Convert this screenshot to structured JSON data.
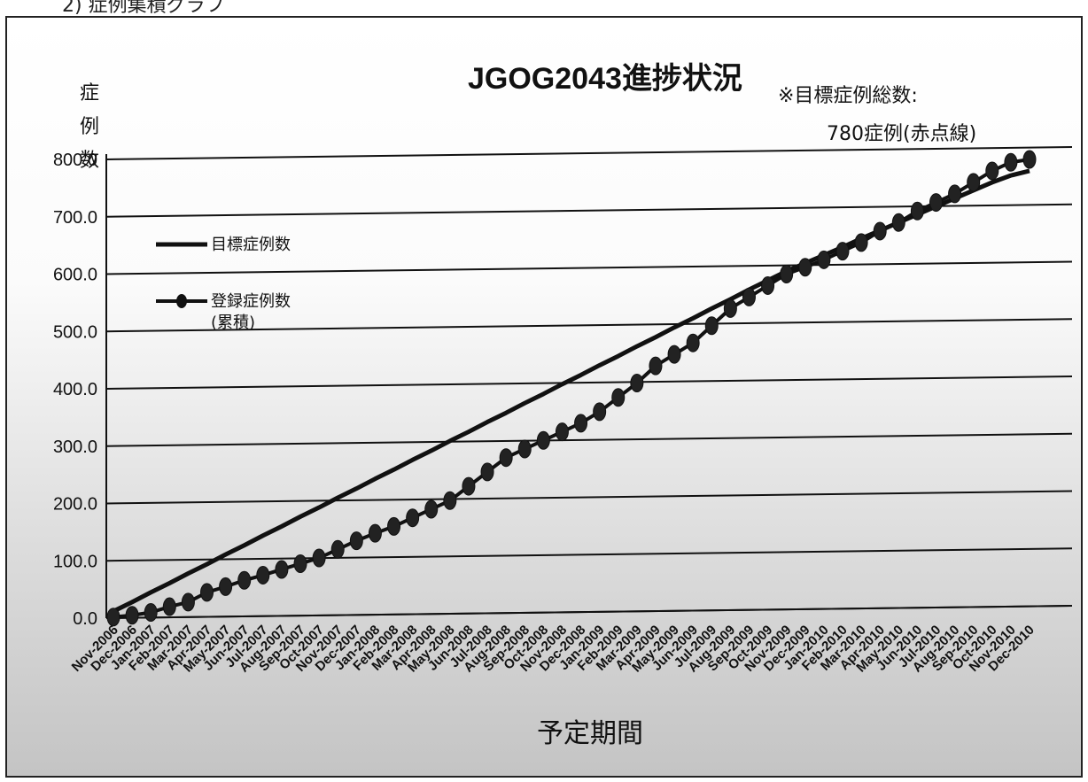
{
  "page_caption": "2) 症例集積グラフ",
  "chart_data": {
    "type": "line",
    "title": "JGOG2043進捗状況",
    "note_line1": "※目標症例総数:",
    "note_line2": "780症例(赤点線)",
    "ylabel_chars": [
      "症",
      "例",
      "数"
    ],
    "xlabel": "予定期間",
    "ylim": [
      0,
      800
    ],
    "yticks": [
      "0.0",
      "100.0",
      "200.0",
      "300.0",
      "400.0",
      "500.0",
      "600.0",
      "700.0",
      "800.0"
    ],
    "grid": true,
    "legend_placement": "left",
    "x": [
      "Nov-2006",
      "Dec-2006",
      "Jan-2007",
      "Feb-2007",
      "Mar-2007",
      "Apr-2007",
      "May-2007",
      "Jun-2007",
      "Jul-2007",
      "Aug-2007",
      "Sep-2007",
      "Oct-2007",
      "Nov-2007",
      "Dec-2007",
      "Jan-2008",
      "Feb-2008",
      "Mar-2008",
      "Apr-2008",
      "May-2008",
      "Jun-2008",
      "Jul-2008",
      "Aug-2008",
      "Sep-2008",
      "Oct-2008",
      "Nov-2008",
      "Dec-2008",
      "Jan-2009",
      "Feb-2009",
      "Mar-2009",
      "Apr-2009",
      "May-2009",
      "Jun-2009",
      "Jul-2009",
      "Aug-2009",
      "Sep-2009",
      "Oct-2009",
      "Nov-2009",
      "Dec-2009",
      "Jan-2010",
      "Feb-2010",
      "Mar-2010",
      "Apr-2010",
      "May-2010",
      "Jun-2010",
      "Jul-2010",
      "Aug-2010",
      "Sep-2010",
      "Oct-2010",
      "Nov-2010",
      "Dec-2010"
    ],
    "series": [
      {
        "name": "目標症例数",
        "values": [
          12,
          28,
          45,
          61,
          78,
          94,
          111,
          127,
          144,
          160,
          177,
          193,
          210,
          226,
          243,
          259,
          276,
          292,
          309,
          325,
          342,
          358,
          375,
          391,
          408,
          424,
          441,
          457,
          474,
          490,
          507,
          523,
          540,
          556,
          573,
          589,
          605,
          619,
          633,
          647,
          662,
          676,
          690,
          704,
          718,
          732,
          746,
          760,
          772,
          780
        ]
      },
      {
        "name": "登録症例数\n(累積)",
        "values": [
          2,
          5,
          10,
          20,
          28,
          45,
          55,
          66,
          75,
          85,
          95,
          105,
          120,
          135,
          148,
          160,
          175,
          190,
          205,
          230,
          255,
          280,
          295,
          310,
          325,
          340,
          360,
          385,
          410,
          440,
          460,
          480,
          510,
          540,
          560,
          580,
          600,
          612,
          625,
          640,
          655,
          675,
          690,
          710,
          725,
          740,
          760,
          780,
          795,
          800
        ]
      }
    ]
  }
}
